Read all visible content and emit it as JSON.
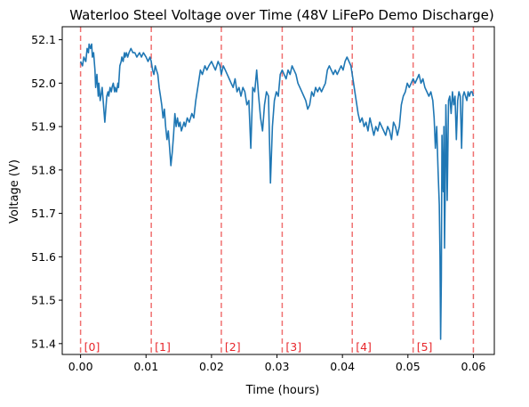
{
  "chart_data": {
    "type": "line",
    "title": "Waterloo Steel Voltage over Time (48V LiFePo Demo Discharge)",
    "xlabel": "Time (hours)",
    "ylabel": "Voltage (V)",
    "xlim": [
      -0.0028,
      0.0632
    ],
    "ylim": [
      51.375,
      52.13
    ],
    "x_ticks": [
      0.0,
      0.01,
      0.02,
      0.03,
      0.04,
      0.05,
      0.06
    ],
    "x_tick_labels": [
      "0.00",
      "0.01",
      "0.02",
      "0.03",
      "0.04",
      "0.05",
      "0.06"
    ],
    "y_ticks": [
      51.4,
      51.5,
      51.6,
      51.7,
      51.8,
      51.9,
      52.0,
      52.1
    ],
    "y_tick_labels": [
      "51.4",
      "51.5",
      "51.6",
      "51.7",
      "51.8",
      "51.9",
      "52.0",
      "52.1"
    ],
    "grid": false,
    "line_color": "#1f77b4",
    "marker_color": "#f07070",
    "marker_label_color": "#e8262b",
    "markers": [
      {
        "x": 0.0,
        "label": "[0]"
      },
      {
        "x": 0.0108,
        "label": "[1]"
      },
      {
        "x": 0.0215,
        "label": "[2]"
      },
      {
        "x": 0.0308,
        "label": "[3]"
      },
      {
        "x": 0.0415,
        "label": "[4]"
      },
      {
        "x": 0.0508,
        "label": "[5]"
      },
      {
        "x": 0.06,
        "label": ""
      }
    ],
    "series": [
      {
        "x": [
          0.0,
          0.0003,
          0.0005,
          0.0008,
          0.001,
          0.0012,
          0.0013,
          0.0015,
          0.0017,
          0.0018,
          0.002,
          0.0022,
          0.0023,
          0.0025,
          0.0027,
          0.0028,
          0.003,
          0.0032,
          0.0033,
          0.0035,
          0.0037,
          0.0038,
          0.004,
          0.0042,
          0.0043,
          0.0045,
          0.0047,
          0.0048,
          0.005,
          0.0052,
          0.0053,
          0.0055,
          0.0057,
          0.0058,
          0.006,
          0.0062,
          0.0063,
          0.0065,
          0.0067,
          0.0068,
          0.007,
          0.0072,
          0.0074,
          0.0077,
          0.008,
          0.0083,
          0.0086,
          0.009,
          0.0093,
          0.0096,
          0.01,
          0.0103,
          0.0106,
          0.0108,
          0.011,
          0.0112,
          0.0114,
          0.0116,
          0.0118,
          0.012,
          0.0122,
          0.0124,
          0.0126,
          0.0128,
          0.013,
          0.0132,
          0.0134,
          0.0136,
          0.0138,
          0.014,
          0.0142,
          0.0144,
          0.0146,
          0.0148,
          0.015,
          0.0152,
          0.0154,
          0.0156,
          0.0158,
          0.016,
          0.0163,
          0.0166,
          0.017,
          0.0173,
          0.0176,
          0.018,
          0.0183,
          0.0186,
          0.019,
          0.0193,
          0.0196,
          0.02,
          0.0203,
          0.0206,
          0.021,
          0.0213,
          0.0215,
          0.0218,
          0.0221,
          0.0224,
          0.0227,
          0.023,
          0.0233,
          0.0236,
          0.0239,
          0.0242,
          0.0245,
          0.0248,
          0.0251,
          0.0254,
          0.0257,
          0.026,
          0.0263,
          0.0266,
          0.0269,
          0.0272,
          0.0275,
          0.0278,
          0.0281,
          0.0284,
          0.0287,
          0.029,
          0.0293,
          0.0296,
          0.0299,
          0.0302,
          0.0305,
          0.0308,
          0.0311,
          0.0314,
          0.0317,
          0.032,
          0.0323,
          0.0326,
          0.0329,
          0.0332,
          0.0335,
          0.0338,
          0.0341,
          0.0344,
          0.0347,
          0.035,
          0.0353,
          0.0356,
          0.0359,
          0.0362,
          0.0365,
          0.0368,
          0.0371,
          0.0374,
          0.0377,
          0.038,
          0.0383,
          0.0386,
          0.0389,
          0.0392,
          0.0395,
          0.0398,
          0.0401,
          0.0404,
          0.0407,
          0.041,
          0.0413,
          0.0415,
          0.0418,
          0.0421,
          0.0424,
          0.0427,
          0.043,
          0.0433,
          0.0436,
          0.0439,
          0.0442,
          0.0445,
          0.0448,
          0.0451,
          0.0454,
          0.0457,
          0.046,
          0.0463,
          0.0466,
          0.0469,
          0.0472,
          0.0475,
          0.0478,
          0.0481,
          0.0484,
          0.0487,
          0.049,
          0.0493,
          0.0496,
          0.0499,
          0.0502,
          0.0505,
          0.0508,
          0.0511,
          0.0514,
          0.0517,
          0.052,
          0.0523,
          0.0526,
          0.0529,
          0.0532,
          0.0535,
          0.0538,
          0.054,
          0.0542,
          0.0544,
          0.0546,
          0.0548,
          0.0549,
          0.055,
          0.0551,
          0.0552,
          0.0553,
          0.0554,
          0.0555,
          0.0556,
          0.0557,
          0.0558,
          0.0559,
          0.056,
          0.0562,
          0.0564,
          0.0566,
          0.0568,
          0.057,
          0.0572,
          0.0574,
          0.0576,
          0.0578,
          0.058,
          0.0582,
          0.0584,
          0.0586,
          0.0588,
          0.059,
          0.0592,
          0.0594,
          0.0596,
          0.0598,
          0.06
        ],
        "y": [
          52.05,
          52.04,
          52.06,
          52.05,
          52.08,
          52.07,
          52.09,
          52.08,
          52.09,
          52.06,
          52.07,
          52.03,
          51.99,
          52.02,
          51.97,
          52.0,
          51.96,
          51.98,
          51.99,
          51.95,
          51.91,
          51.93,
          51.97,
          51.98,
          51.97,
          51.99,
          51.98,
          51.99,
          52.0,
          51.98,
          51.99,
          51.98,
          52.0,
          51.99,
          52.04,
          52.05,
          52.06,
          52.05,
          52.07,
          52.06,
          52.07,
          52.06,
          52.07,
          52.08,
          52.07,
          52.07,
          52.06,
          52.07,
          52.06,
          52.07,
          52.06,
          52.05,
          52.06,
          52.05,
          52.03,
          52.02,
          52.04,
          52.03,
          52.02,
          51.99,
          51.97,
          51.95,
          51.92,
          51.94,
          51.9,
          51.87,
          51.89,
          51.85,
          51.81,
          51.84,
          51.88,
          51.93,
          51.9,
          51.92,
          51.9,
          51.91,
          51.89,
          51.9,
          51.91,
          51.9,
          51.92,
          51.91,
          51.93,
          51.92,
          51.96,
          52.0,
          52.03,
          52.02,
          52.04,
          52.03,
          52.04,
          52.05,
          52.04,
          52.03,
          52.05,
          52.04,
          52.02,
          52.04,
          52.03,
          52.02,
          52.01,
          52.0,
          51.99,
          52.01,
          51.98,
          51.99,
          51.97,
          51.99,
          51.98,
          51.95,
          51.96,
          51.85,
          51.99,
          51.98,
          52.03,
          51.97,
          51.92,
          51.89,
          51.95,
          51.98,
          51.97,
          51.77,
          51.9,
          51.96,
          51.98,
          51.97,
          52.02,
          52.03,
          52.02,
          52.01,
          52.03,
          52.02,
          52.04,
          52.03,
          52.02,
          52.0,
          51.99,
          51.98,
          51.97,
          51.96,
          51.94,
          51.95,
          51.98,
          51.97,
          51.99,
          51.98,
          51.99,
          51.98,
          51.99,
          52.0,
          52.03,
          52.04,
          52.03,
          52.02,
          52.03,
          52.02,
          52.03,
          52.04,
          52.03,
          52.05,
          52.06,
          52.05,
          52.04,
          52.02,
          51.99,
          51.96,
          51.93,
          51.91,
          51.92,
          51.9,
          51.91,
          51.89,
          51.92,
          51.9,
          51.88,
          51.9,
          51.89,
          51.91,
          51.9,
          51.89,
          51.88,
          51.9,
          51.89,
          51.87,
          51.91,
          51.9,
          51.88,
          51.9,
          51.95,
          51.97,
          51.98,
          52.0,
          51.99,
          52.0,
          52.01,
          52.0,
          52.01,
          52.02,
          52.0,
          52.01,
          51.99,
          51.98,
          51.97,
          51.98,
          51.96,
          51.92,
          51.85,
          51.9,
          51.8,
          51.72,
          51.6,
          51.41,
          51.55,
          51.88,
          51.79,
          51.75,
          51.9,
          51.62,
          51.76,
          51.95,
          51.88,
          51.73,
          51.96,
          51.97,
          51.93,
          51.98,
          51.95,
          51.97,
          51.87,
          51.96,
          51.98,
          51.97,
          51.85,
          51.97,
          51.98,
          51.97,
          51.96,
          51.98,
          51.97,
          51.98,
          51.98,
          51.97
        ]
      }
    ]
  }
}
